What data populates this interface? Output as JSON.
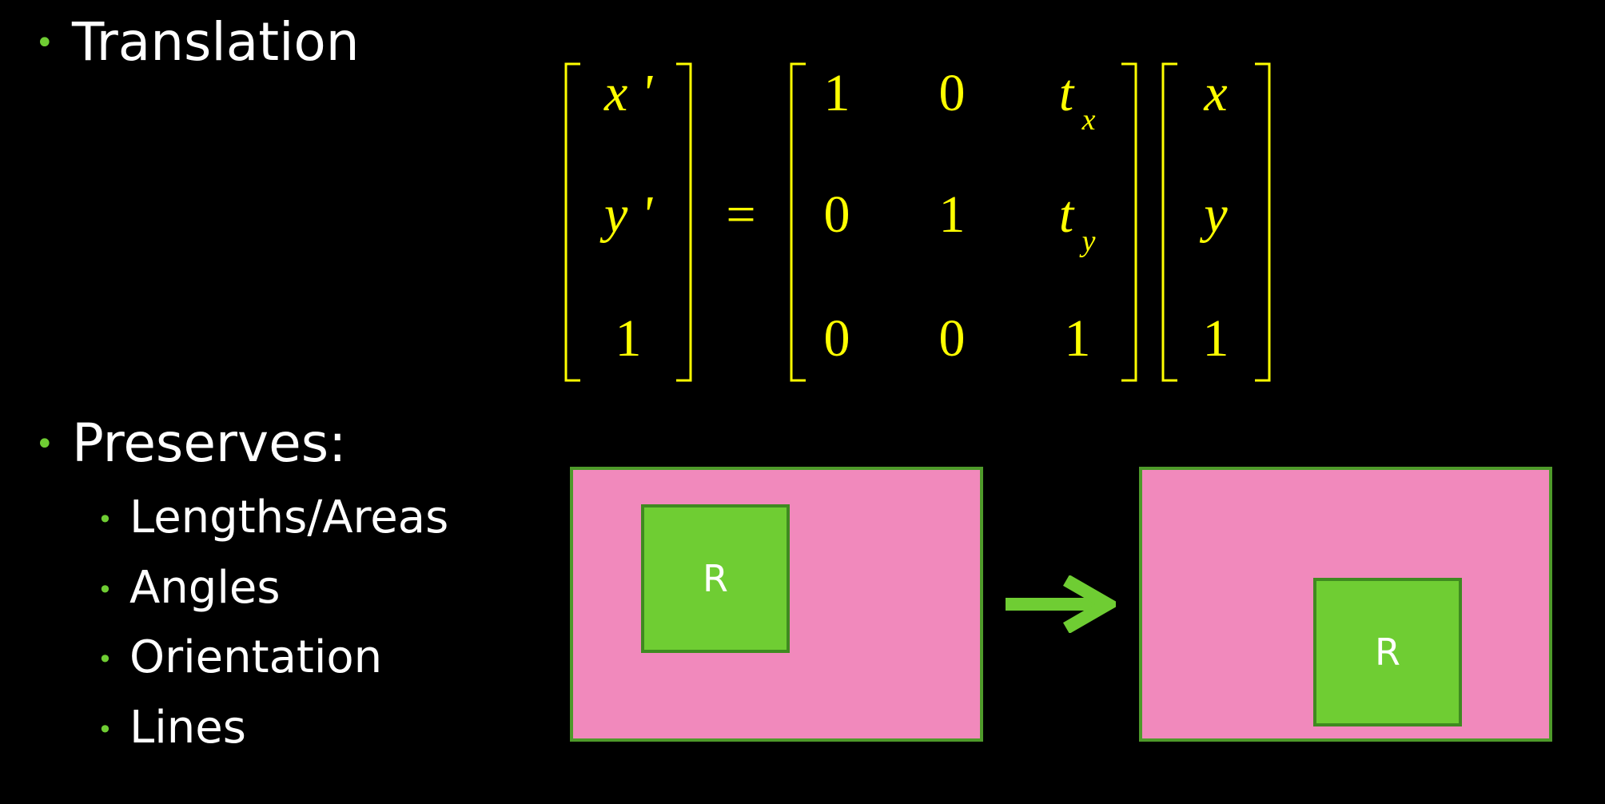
{
  "bullets": {
    "translation": "Translation",
    "preserves": "Preserves:",
    "sub_items": [
      "Lengths/Areas",
      "Angles",
      "Orientation",
      "Lines"
    ]
  },
  "matrix": {
    "lhs": [
      "x '",
      "y '",
      "1"
    ],
    "equals": "=",
    "transform": [
      [
        "1",
        "0",
        "t",
        "x"
      ],
      [
        "0",
        "1",
        "t",
        "y"
      ],
      [
        "0",
        "0",
        "1",
        ""
      ]
    ],
    "rhs": [
      "x",
      "y",
      "1"
    ]
  },
  "diagram": {
    "before_label": "R",
    "after_label": "R"
  },
  "colors": {
    "background": "#000000",
    "text": "#ffffff",
    "bullet": "#6fcd33",
    "math": "#ffff00",
    "panel": "#f189bc",
    "square": "#6fcd33",
    "arrow": "#6fcd33"
  }
}
